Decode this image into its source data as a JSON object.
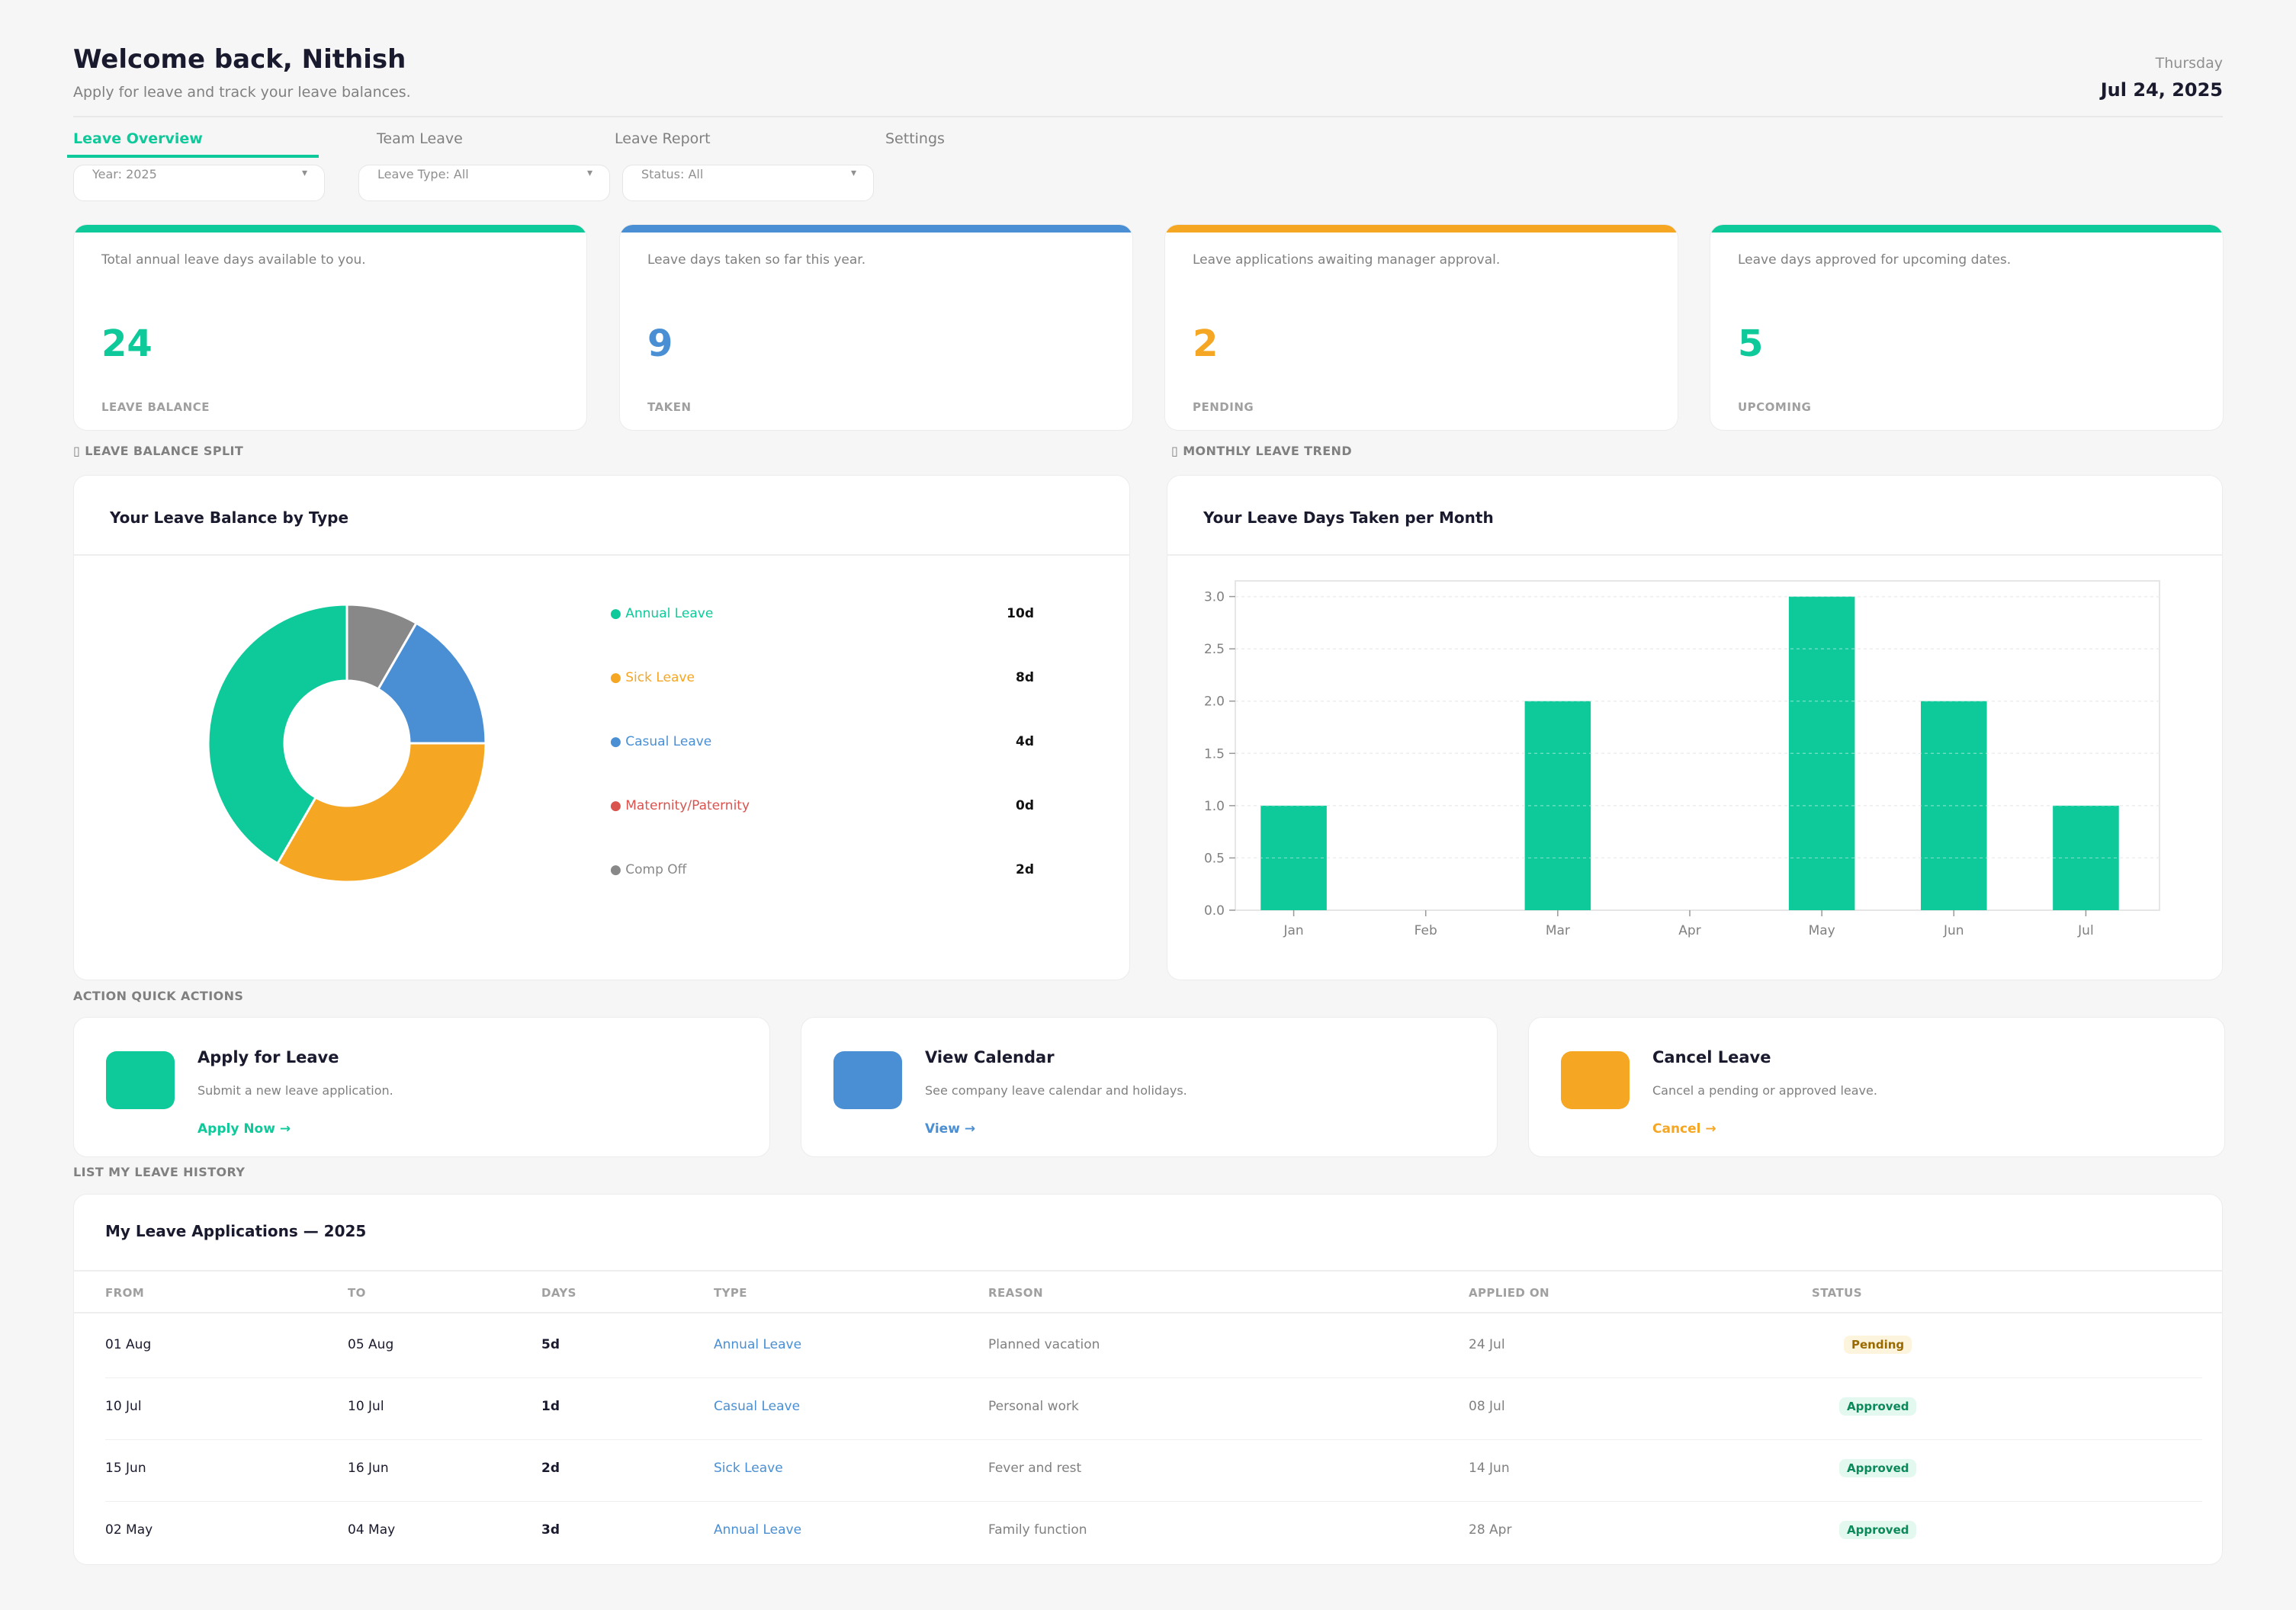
{
  "header": {
    "title": "Welcome back, Nithish",
    "subtitle": "Apply for leave and track your leave balances.",
    "day": "Thursday",
    "date": "Jul 24, 2025"
  },
  "tabs": [
    {
      "label": "Leave Overview",
      "active": true
    },
    {
      "label": "Team Leave",
      "active": false
    },
    {
      "label": "Leave Report",
      "active": false
    },
    {
      "label": "Settings",
      "active": false
    }
  ],
  "filters": [
    {
      "label": "Year: 2025"
    },
    {
      "label": "Leave Type: All"
    },
    {
      "label": "Status: All"
    }
  ],
  "kpis": [
    {
      "desc": "Total annual leave days available to you.",
      "value": "24",
      "label": "LEAVE BALANCE",
      "color": "#0ec99a"
    },
    {
      "desc": "Leave days taken so far this year.",
      "value": "9",
      "label": "TAKEN",
      "color": "#4a8fd4"
    },
    {
      "desc": "Leave applications awaiting manager approval.",
      "value": "2",
      "label": "PENDING",
      "color": "#f5a623"
    },
    {
      "desc": "Leave days approved for upcoming dates.",
      "value": "5",
      "label": "UPCOMING",
      "color": "#0ec99a"
    }
  ],
  "sections": {
    "balance_split": "LEAVE BALANCE SPLIT",
    "monthly_trend": "MONTHLY LEAVE TREND",
    "quick_actions": "ACTION  QUICK ACTIONS",
    "history": "LIST  MY LEAVE HISTORY"
  },
  "balance_panel": {
    "title": "Your Leave Balance by Type"
  },
  "trend_panel": {
    "title": "Your Leave Days Taken per Month"
  },
  "legend": [
    {
      "label": "● Annual Leave",
      "value": "10d",
      "color": "#0ec99a"
    },
    {
      "label": "● Sick Leave",
      "value": "8d",
      "color": "#f5a623"
    },
    {
      "label": "● Casual Leave",
      "value": "4d",
      "color": "#4a8fd4"
    },
    {
      "label": "● Maternity/Paternity",
      "value": "0d",
      "color": "#d9534f"
    },
    {
      "label": "● Comp Off",
      "value": "2d",
      "color": "#888888"
    }
  ],
  "chart_data": [
    {
      "type": "pie",
      "categories": [
        "Annual Leave",
        "Sick Leave",
        "Casual Leave",
        "Maternity/Paternity",
        "Comp Off"
      ],
      "values": [
        10,
        8,
        4,
        0,
        2
      ],
      "colors": [
        "#0ec99a",
        "#f5a623",
        "#4a8fd4",
        "#d9534f",
        "#888888"
      ],
      "donut": true,
      "title": "Your Leave Balance by Type"
    },
    {
      "type": "bar",
      "categories": [
        "Jan",
        "Feb",
        "Mar",
        "Apr",
        "May",
        "Jun",
        "Jul"
      ],
      "values": [
        1,
        0,
        2,
        0,
        3,
        2,
        1
      ],
      "ylim": [
        0,
        3.15
      ],
      "yticks": [
        "0.0",
        "0.5",
        "1.0",
        "1.5",
        "2.0",
        "2.5",
        "3.0"
      ],
      "ytick_values": [
        0,
        0.5,
        1,
        1.5,
        2,
        2.5,
        3
      ],
      "grid": true,
      "color": "#0ec99a",
      "title": "Your Leave Days Taken per Month"
    }
  ],
  "quick_actions": [
    {
      "title": "Apply for Leave",
      "desc": "Submit a new leave application.",
      "link": "Apply Now →",
      "color": "#0ec99a"
    },
    {
      "title": "View Calendar",
      "desc": "See company leave calendar and holidays.",
      "link": "View →",
      "color": "#4a8fd4"
    },
    {
      "title": "Cancel Leave",
      "desc": "Cancel a pending or approved leave.",
      "link": "Cancel →",
      "color": "#f5a623"
    }
  ],
  "history": {
    "title": "My Leave Applications — 2025",
    "columns": [
      "FROM",
      "TO",
      "DAYS",
      "TYPE",
      "REASON",
      "APPLIED ON",
      "STATUS"
    ],
    "rows": [
      {
        "from": "01 Aug",
        "to": "05 Aug",
        "days": "5d",
        "type": "Annual Leave",
        "reason": "Planned vacation",
        "applied": "24 Jul",
        "status": "Pending"
      },
      {
        "from": "10 Jul",
        "to": "10 Jul",
        "days": "1d",
        "type": "Casual Leave",
        "reason": "Personal work",
        "applied": "08 Jul",
        "status": "Approved"
      },
      {
        "from": "15 Jun",
        "to": "16 Jun",
        "days": "2d",
        "type": "Sick Leave",
        "reason": "Fever and rest",
        "applied": "14 Jun",
        "status": "Approved"
      },
      {
        "from": "02 May",
        "to": "04 May",
        "days": "3d",
        "type": "Annual Leave",
        "reason": "Family function",
        "applied": "28 Apr",
        "status": "Approved"
      }
    ]
  }
}
